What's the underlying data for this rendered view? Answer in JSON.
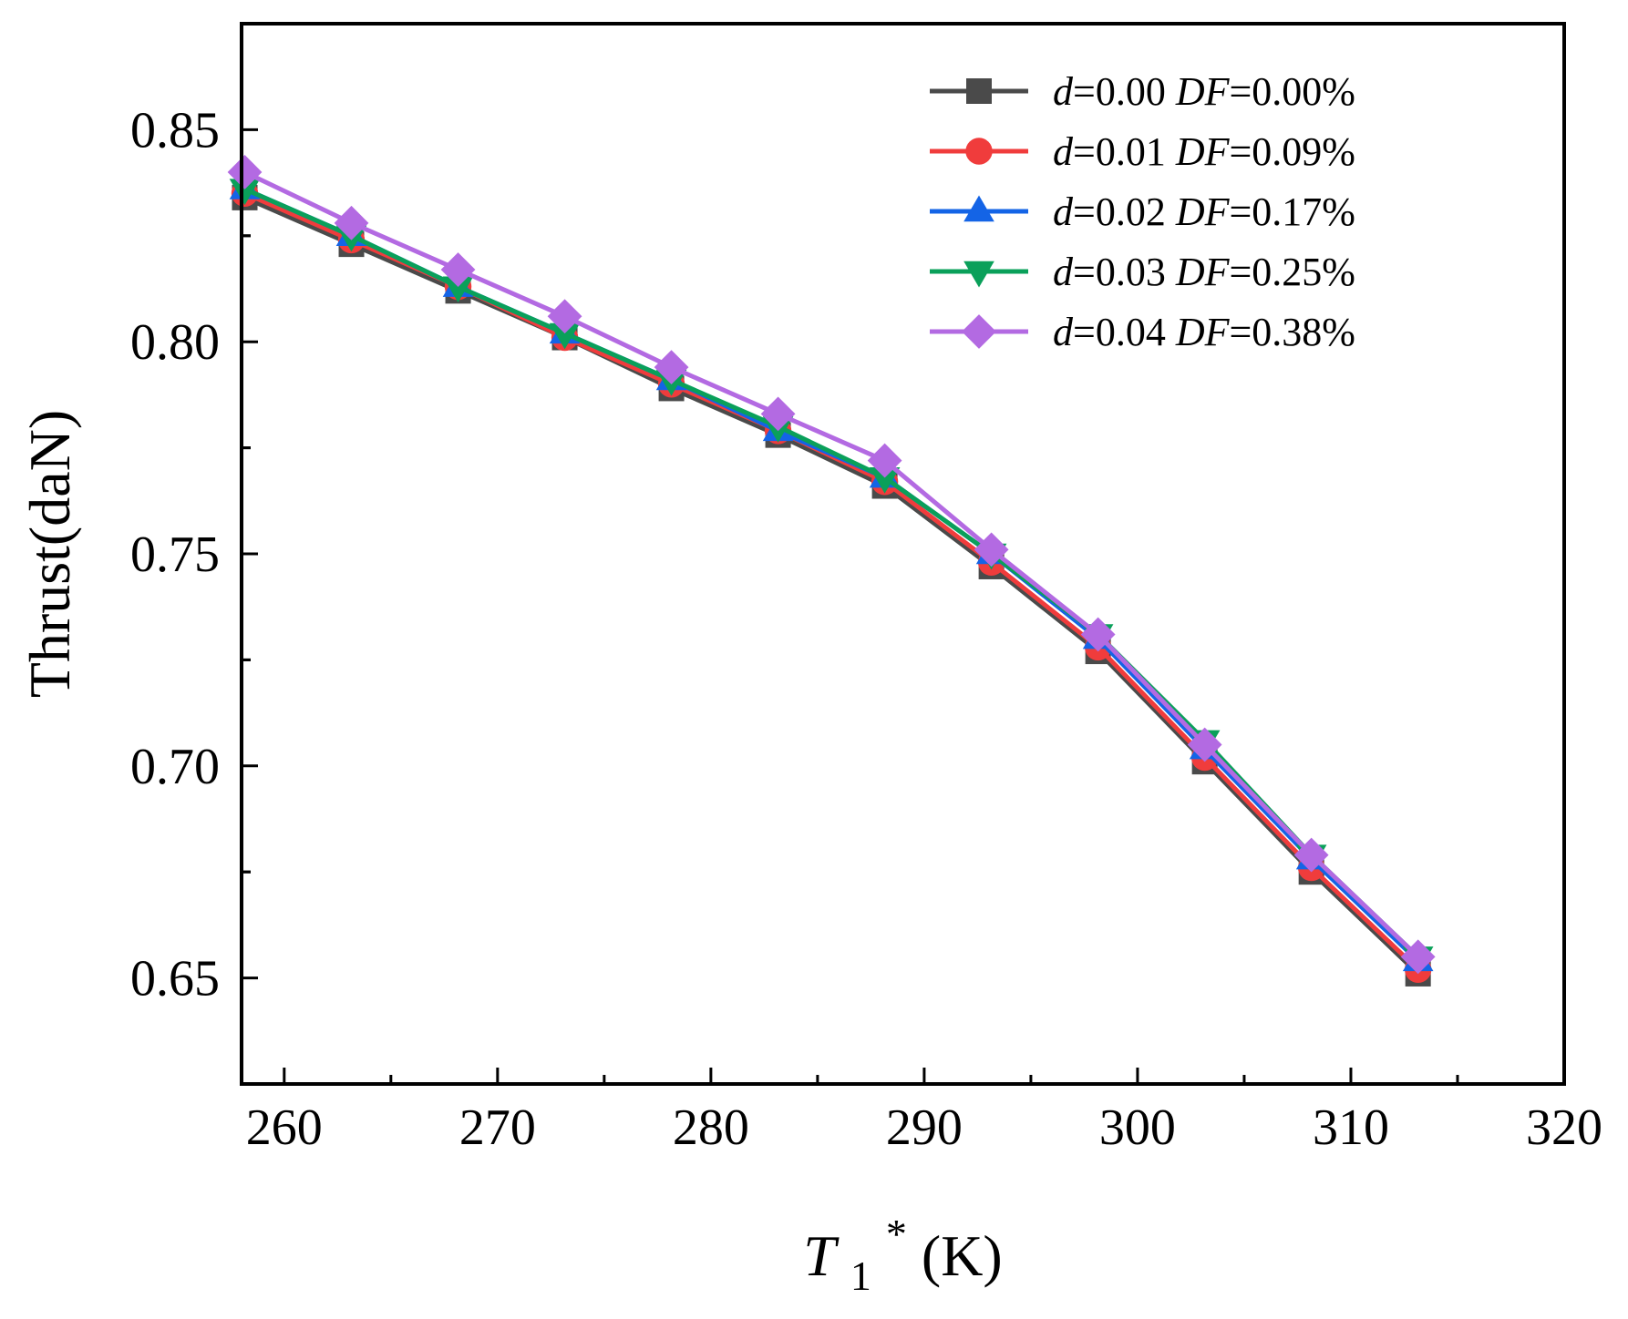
{
  "chart_data": {
    "type": "line",
    "title": "",
    "xlabel": {
      "symbol": "T",
      "subscript": "1",
      "superscript": "*",
      "unit": "(K)"
    },
    "ylabel": "Thrust(daN)",
    "xlim": [
      258,
      320
    ],
    "ylim": [
      0.625,
      0.875
    ],
    "x_ticks": [
      260,
      270,
      280,
      290,
      300,
      310,
      320
    ],
    "y_ticks": [
      0.65,
      0.7,
      0.75,
      0.8,
      0.85
    ],
    "x_tick_labels": [
      "260",
      "270",
      "280",
      "290",
      "300",
      "310",
      "320"
    ],
    "y_tick_labels": [
      "0.65",
      "0.70",
      "0.75",
      "0.80",
      "0.85"
    ],
    "grid": false,
    "legend_position": "top-right",
    "x": [
      258.15,
      263.15,
      268.15,
      273.15,
      278.15,
      283.15,
      288.15,
      293.15,
      298.15,
      303.15,
      308.15,
      313.15
    ],
    "series": [
      {
        "name": "d=0.00 DF=0.00%",
        "label_parts": {
          "d_var": "d",
          "d_val": "=0.00 ",
          "df_var": "DF",
          "df_val": "=0.00%"
        },
        "color": "#4a4a4a",
        "marker": "square",
        "values": [
          0.834,
          0.823,
          0.812,
          0.801,
          0.789,
          0.778,
          0.766,
          0.747,
          0.727,
          0.701,
          0.675,
          0.651
        ]
      },
      {
        "name": "d=0.01 DF=0.09%",
        "label_parts": {
          "d_var": "d",
          "d_val": "=0.01 ",
          "df_var": "DF",
          "df_val": "=0.09%"
        },
        "color": "#f03c3c",
        "marker": "circle",
        "values": [
          0.835,
          0.824,
          0.813,
          0.801,
          0.79,
          0.779,
          0.767,
          0.748,
          0.728,
          0.702,
          0.676,
          0.652
        ]
      },
      {
        "name": "d=0.02 DF=0.17%",
        "label_parts": {
          "d_var": "d",
          "d_val": "=0.02 ",
          "df_var": "DF",
          "df_val": "=0.17%"
        },
        "color": "#1464e6",
        "marker": "triangle-up",
        "values": [
          0.836,
          0.825,
          0.813,
          0.802,
          0.791,
          0.779,
          0.768,
          0.75,
          0.73,
          0.704,
          0.678,
          0.654
        ]
      },
      {
        "name": "d=0.03 DF=0.25%",
        "label_parts": {
          "d_var": "d",
          "d_val": "=0.03 ",
          "df_var": "DF",
          "df_val": "=0.25%"
        },
        "color": "#0aa05a",
        "marker": "triangle-down",
        "values": [
          0.836,
          0.825,
          0.813,
          0.802,
          0.791,
          0.78,
          0.768,
          0.75,
          0.731,
          0.706,
          0.679,
          0.655
        ]
      },
      {
        "name": "d=0.04 DF=0.38%",
        "label_parts": {
          "d_var": "d",
          "d_val": "=0.04 ",
          "df_var": "DF",
          "df_val": "=0.38%"
        },
        "color": "#b36ae2",
        "marker": "diamond",
        "values": [
          0.84,
          0.828,
          0.817,
          0.806,
          0.794,
          0.783,
          0.772,
          0.751,
          0.731,
          0.705,
          0.679,
          0.655
        ]
      }
    ]
  }
}
